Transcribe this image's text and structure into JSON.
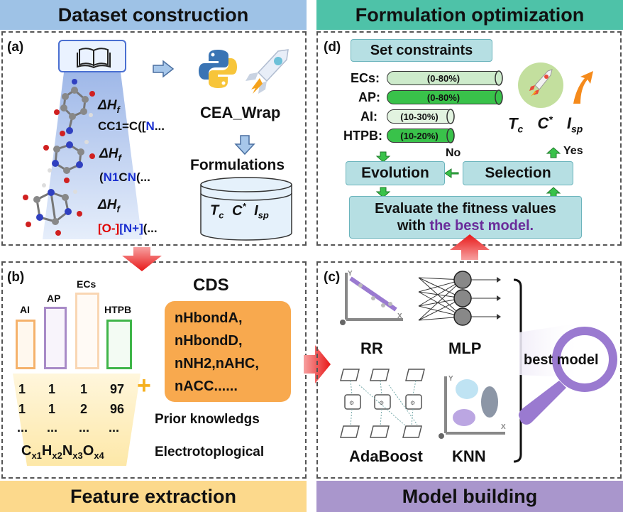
{
  "banners": {
    "dataset": "Dataset construction",
    "formulation": "Formulation optimization",
    "feature": "Feature extraction",
    "model": "Model building"
  },
  "panel_a": {
    "label": "(a)",
    "dh": "ΔH",
    "dh_sub": "f",
    "smiles1_pre": "CC1=C([",
    "smiles1_n": "N",
    "smiles1_post": "...",
    "smiles2_pre": "(",
    "smiles2_n": "N1",
    "smiles2_mid": "C",
    "smiles2_n2": "N",
    "smiles2_post": "(...",
    "smiles3_o": "[O-]",
    "smiles3_n": "[N+]",
    "smiles3_post": "(...",
    "cea": "CEA_Wrap",
    "formulations": "Formulations",
    "tc": "T",
    "tc_sub": "c",
    "cstar": "C",
    "cstar_sup": "*",
    "isp": "I",
    "isp_sub": "sp"
  },
  "panel_d": {
    "label": "(d)",
    "set_constraints": "Set constraints",
    "rows": [
      {
        "name": "ECs:",
        "range": "(0-80%)",
        "color": "#cdebcb"
      },
      {
        "name": "AP:",
        "range": "(0-80%)",
        "color": "#39c24a"
      },
      {
        "name": "AI:",
        "range": "(10-30%)",
        "color": "#e2f3e0"
      },
      {
        "name": "HTPB:",
        "range": "(10-20%)",
        "color": "#39c24a"
      }
    ],
    "no": "No",
    "yes": "Yes",
    "evolution": "Evolution",
    "selection": "Selection",
    "evaluate_line1": "Evaluate the fitness values",
    "evaluate_line2_pre": "with ",
    "evaluate_line2_hl": "the best model.",
    "tc": "T",
    "tc_sub": "c",
    "cstar": "C",
    "cstar_sup": "*",
    "isp": "I",
    "isp_sub": "sp"
  },
  "panel_b": {
    "label": "(b)",
    "bars": [
      {
        "name": "AI",
        "color": "#f5b26b"
      },
      {
        "name": "AP",
        "color": "#a88bc7"
      },
      {
        "name": "ECs",
        "color": "#f9d6b3"
      },
      {
        "name": "HTPB",
        "color": "#3fb549"
      }
    ],
    "rows": [
      [
        "1",
        "1",
        "1",
        "97"
      ],
      [
        "1",
        "1",
        "2",
        "96"
      ],
      [
        "...",
        "...",
        "...",
        "..."
      ]
    ],
    "formula": {
      "c": "C",
      "x1": "x1",
      "h": "H",
      "x2": "x2",
      "n": "N",
      "x3": "x3",
      "o": "O",
      "x4": "x4"
    },
    "plus": "+",
    "cds": "CDS",
    "descriptors": [
      "nHbondA,",
      "nHbondD,",
      "nNH2,nAHC,",
      "nACC......"
    ],
    "prior": "Prior knowledgs",
    "electro": "Electrotoplogical"
  },
  "panel_c": {
    "label": "(c)",
    "rr": "RR",
    "mlp": "MLP",
    "adaboost": "AdaBoost",
    "knn": "KNN",
    "best_model": "best model",
    "axis_y": "Y",
    "axis_x": "X"
  }
}
